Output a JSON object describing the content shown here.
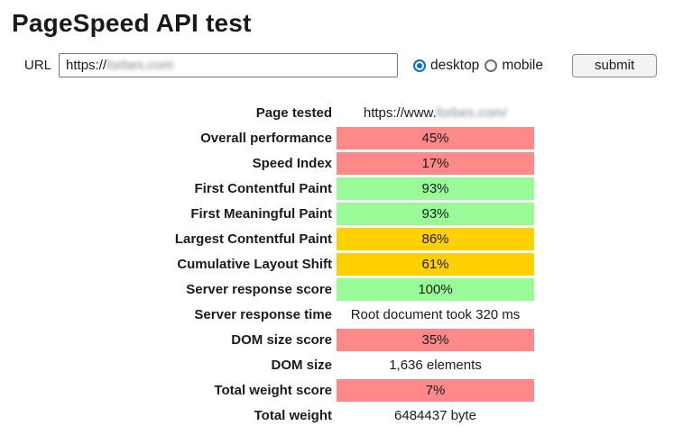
{
  "header": {
    "title": "PageSpeed API test"
  },
  "form": {
    "url_label": "URL",
    "url_value_prefix": "https://",
    "url_value_redacted": "forbes.com",
    "device_options": [
      {
        "label": "desktop",
        "checked": true
      },
      {
        "label": "mobile",
        "checked": false
      }
    ],
    "submit_label": "submit"
  },
  "colors": {
    "poor": "#FF8888",
    "good": "#98FB98",
    "average": "#FFD100",
    "accent_radio": "#0B6CD6"
  },
  "results": {
    "rows": [
      {
        "label": "Page tested",
        "value_prefix": "https://www.",
        "value_redacted": "forbes.com/",
        "bg": ""
      },
      {
        "label": "Overall performance",
        "value": "45%",
        "bg": "#FF8888"
      },
      {
        "label": "Speed Index",
        "value": "17%",
        "bg": "#FF8888"
      },
      {
        "label": "First Contentful Paint",
        "value": "93%",
        "bg": "#98FB98"
      },
      {
        "label": "First Meaningful Paint",
        "value": "93%",
        "bg": "#98FB98"
      },
      {
        "label": "Largest Contentful Paint",
        "value": "86%",
        "bg": "#FFD100"
      },
      {
        "label": "Cumulative Layout Shift",
        "value": "61%",
        "bg": "#FFD100"
      },
      {
        "label": "Server response score",
        "value": "100%",
        "bg": "#98FB98"
      },
      {
        "label": "Server response time",
        "value": "Root document took 320 ms",
        "bg": ""
      },
      {
        "label": "DOM size score",
        "value": "35%",
        "bg": "#FF8888"
      },
      {
        "label": "DOM size",
        "value": "1,636 elements",
        "bg": ""
      },
      {
        "label": "Total weight score",
        "value": "7%",
        "bg": "#FF8888"
      },
      {
        "label": "Total weight",
        "value": "6484437 byte",
        "bg": ""
      }
    ]
  }
}
